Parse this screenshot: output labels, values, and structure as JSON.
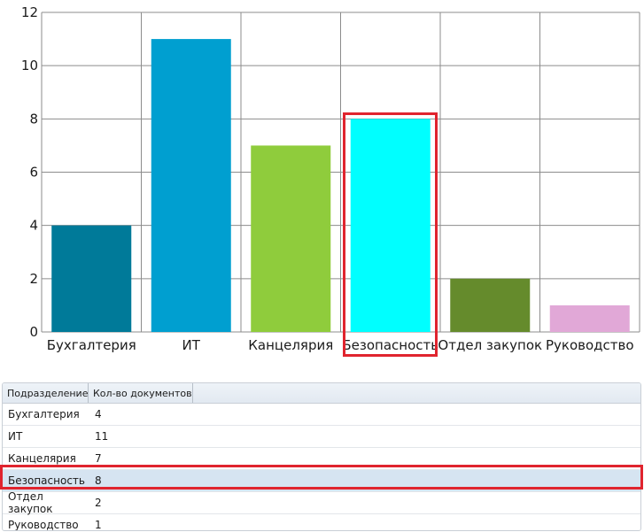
{
  "chart_data": {
    "type": "bar",
    "categories": [
      "Бухгалтерия",
      "ИТ",
      "Канцелярия",
      "Безопасность",
      "Отдел закупок",
      "Руководство"
    ],
    "values": [
      4,
      11,
      7,
      8,
      2,
      1
    ],
    "colors": [
      "#007a99",
      "#009fd0",
      "#8fcc3c",
      "#00ffff",
      "#658b2c",
      "#e1a8d7"
    ],
    "ylim": [
      0,
      12
    ],
    "yticks": [
      "0",
      "2",
      "4",
      "6",
      "8",
      "10",
      "12"
    ],
    "grid": true,
    "highlighted_category": "Безопасность"
  },
  "table": {
    "headers": [
      "Подразделение",
      "Кол-во документов"
    ],
    "rows": [
      {
        "dept": "Бухгалтерия",
        "count": "4"
      },
      {
        "dept": "ИТ",
        "count": "11"
      },
      {
        "dept": "Канцелярия",
        "count": "7"
      },
      {
        "dept": "Безопасность",
        "count": "8"
      },
      {
        "dept": "Отдел закупок",
        "count": "2"
      },
      {
        "dept": "Руководство",
        "count": "1"
      }
    ],
    "selected_row": 3
  },
  "highlight_color": "#e0242e"
}
